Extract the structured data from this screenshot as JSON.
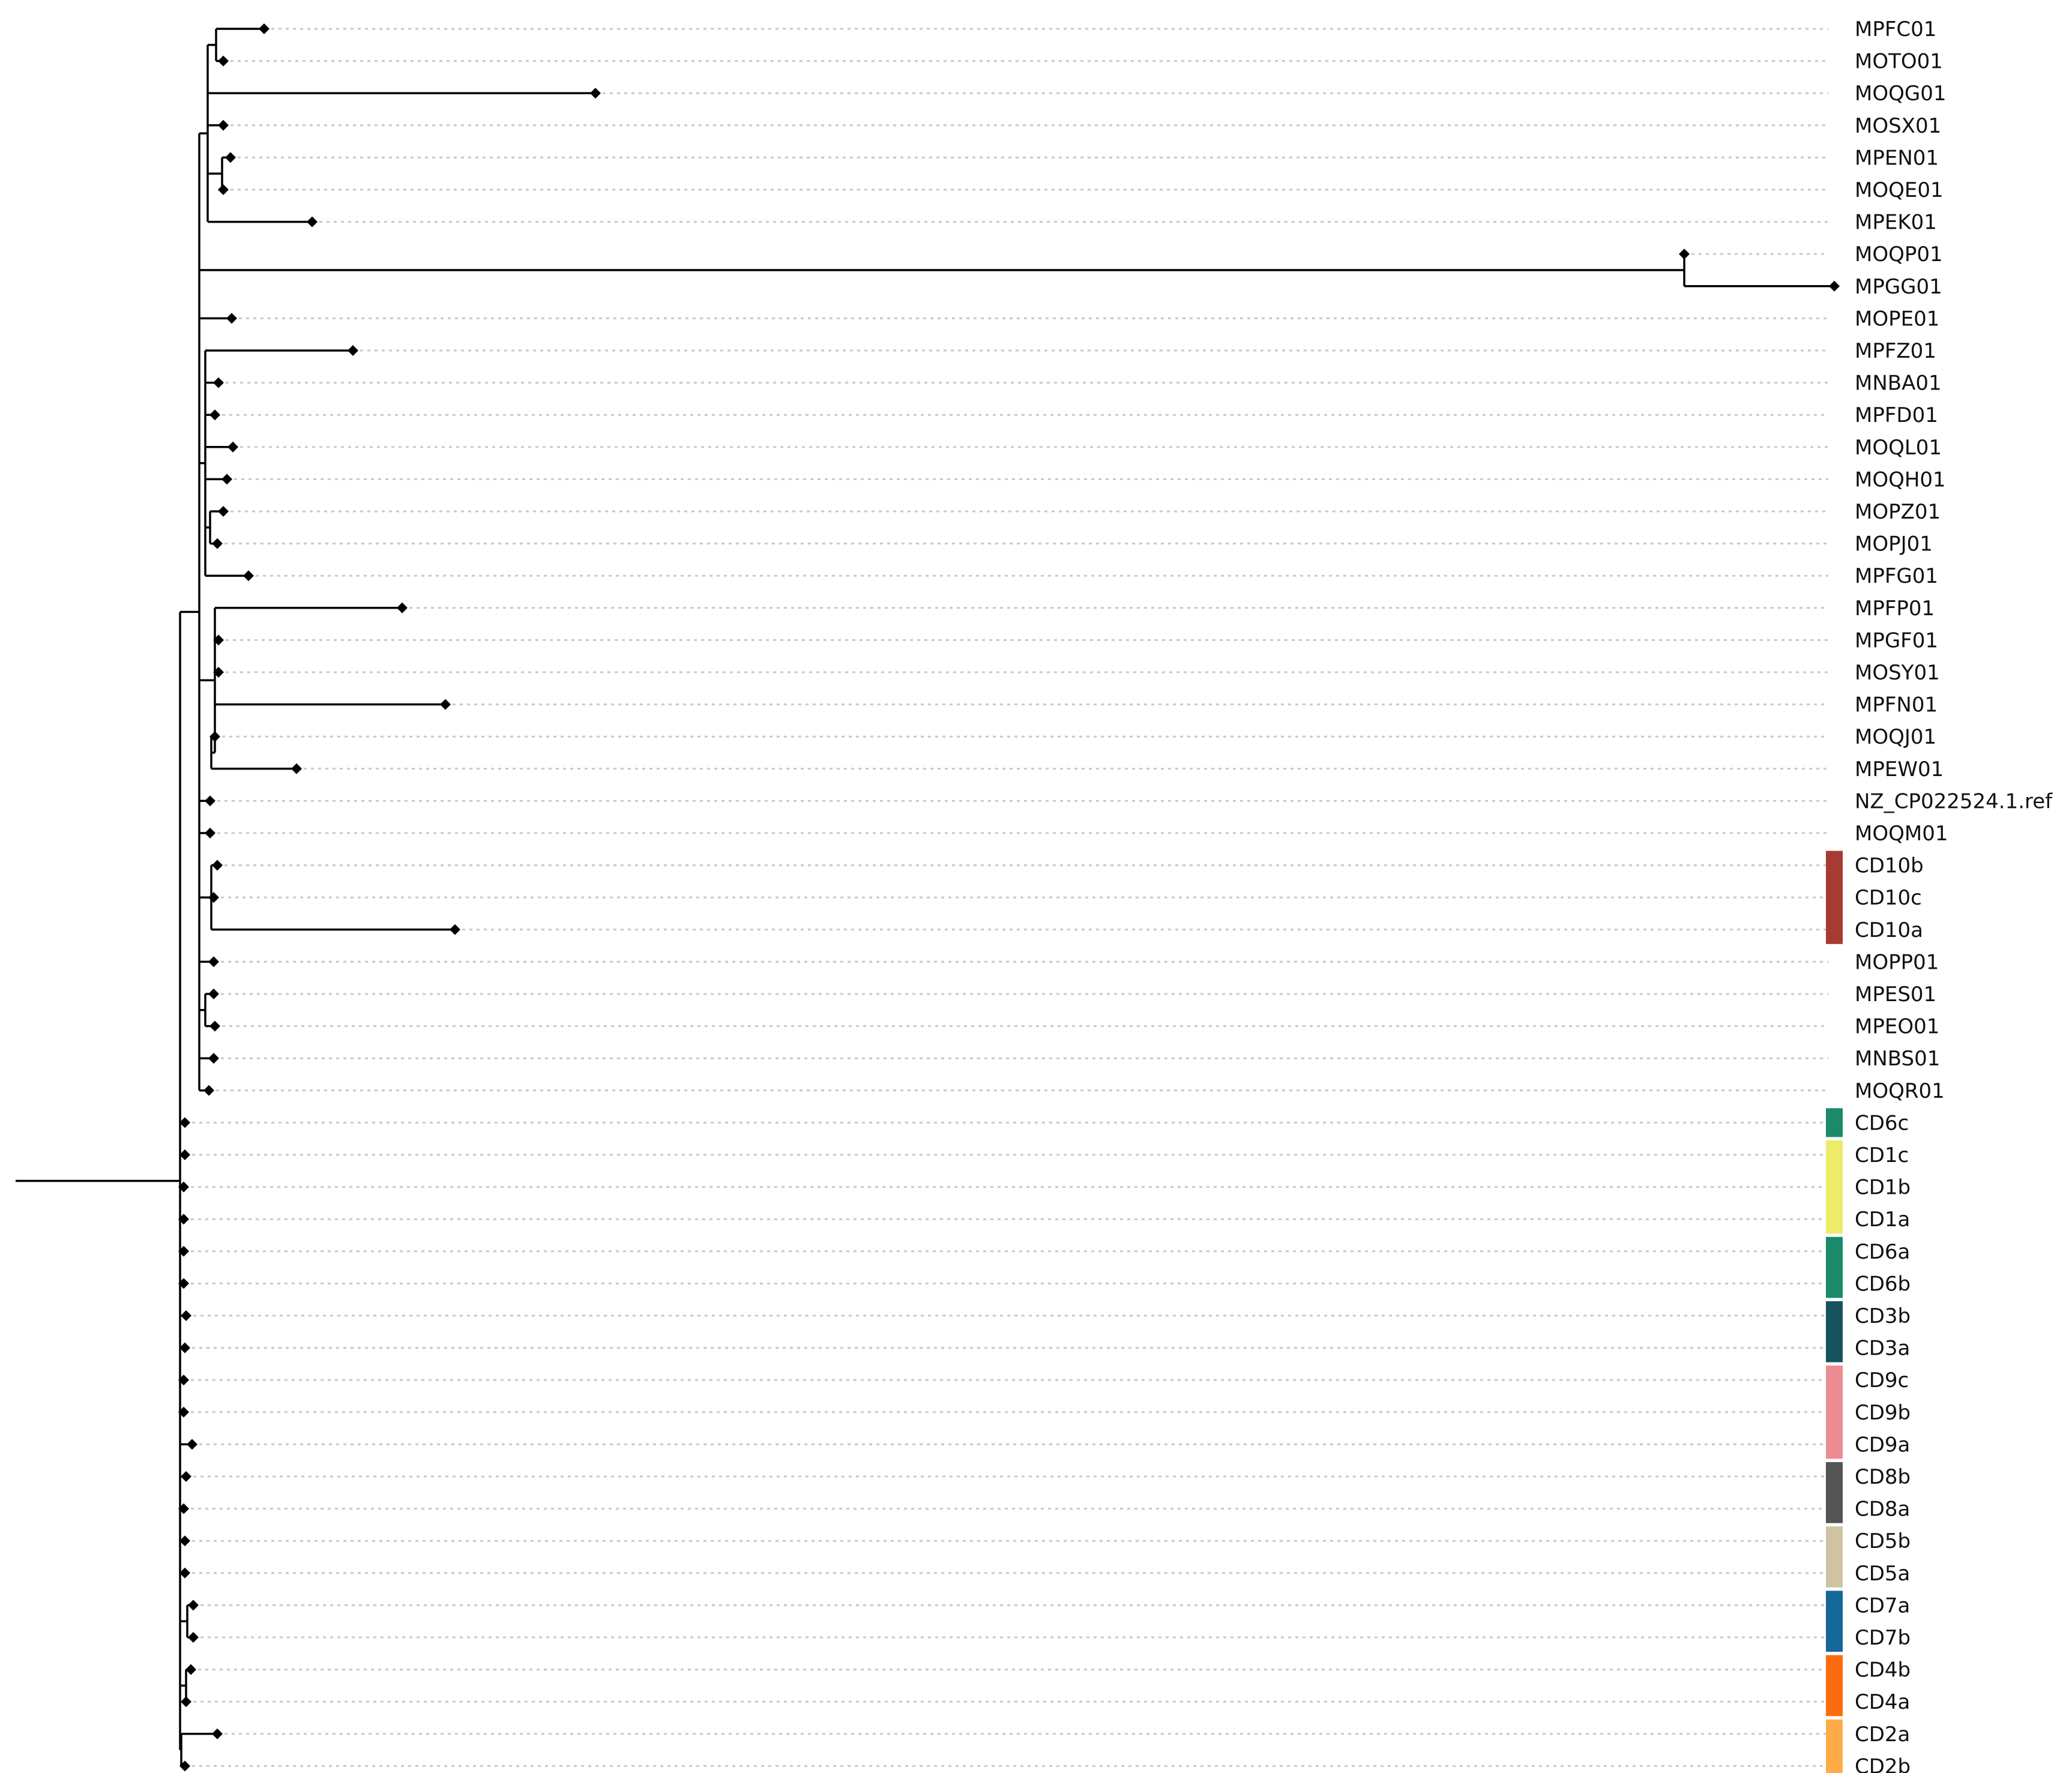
{
  "figure": {
    "type": "phylogenetic-tree",
    "orientation": "rectangular",
    "tip_marker": "diamond"
  },
  "leaves": [
    "MPFC01",
    "MOTO01",
    "MOQG01",
    "MOSX01",
    "MPEN01",
    "MOQE01",
    "MPEK01",
    "MOQP01",
    "MPGG01",
    "MOPE01",
    "MPFZ01",
    "MNBA01",
    "MPFD01",
    "MOQL01",
    "MOQH01",
    "MOPZ01",
    "MOPJ01",
    "MPFG01",
    "MPFP01",
    "MPGF01",
    "MOSY01",
    "MPFN01",
    "MOQJ01",
    "MPEW01",
    "NZ_CP022524.1.ref",
    "MOQM01",
    "CD10b",
    "CD10c",
    "CD10a",
    "MOPP01",
    "MPES01",
    "MPEO01",
    "MNBS01",
    "MOQR01",
    "CD6c",
    "CD1c",
    "CD1b",
    "CD1a",
    "CD6a",
    "CD6b",
    "CD3b",
    "CD3a",
    "CD9c",
    "CD9b",
    "CD9a",
    "CD8b",
    "CD8a",
    "CD5b",
    "CD5a",
    "CD7a",
    "CD7b",
    "CD4b",
    "CD4a",
    "CD2a",
    "CD2b"
  ],
  "clade_bars": [
    {
      "group": "CD10",
      "first": 26,
      "last": 28,
      "color": "#a83a34"
    },
    {
      "group": "CD6c",
      "first": 34,
      "last": 34,
      "color": "#1a8a6a"
    },
    {
      "group": "CD1",
      "first": 35,
      "last": 37,
      "color": "#eeea6a"
    },
    {
      "group": "CD6",
      "first": 38,
      "last": 39,
      "color": "#1a8a6a"
    },
    {
      "group": "CD3",
      "first": 40,
      "last": 41,
      "color": "#15535e"
    },
    {
      "group": "CD9",
      "first": 42,
      "last": 44,
      "color": "#ec8c92"
    },
    {
      "group": "CD8",
      "first": 45,
      "last": 46,
      "color": "#545454"
    },
    {
      "group": "CD5",
      "first": 47,
      "last": 48,
      "color": "#cfc3a2"
    },
    {
      "group": "CD7",
      "first": 49,
      "last": 50,
      "color": "#15689a"
    },
    {
      "group": "CD4",
      "first": 51,
      "last": 52,
      "color": "#fc6c0e"
    },
    {
      "group": "CD2",
      "first": 53,
      "last": 54,
      "color": "#feac48"
    }
  ]
}
